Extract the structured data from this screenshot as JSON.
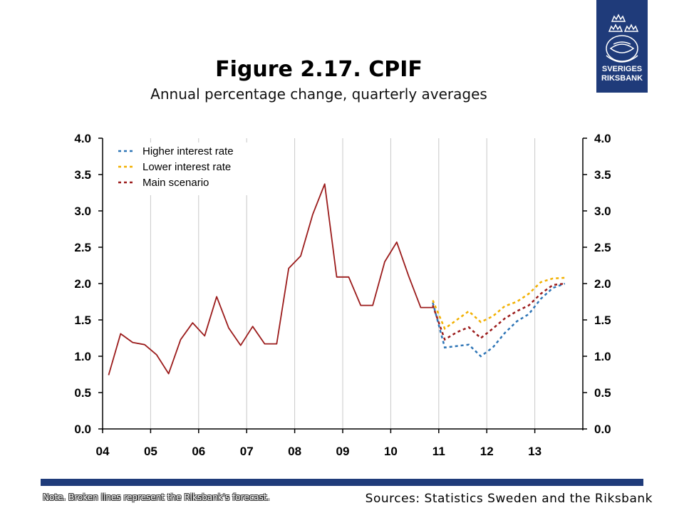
{
  "header": {
    "title": "Figure 2.17. CPIF",
    "subtitle": "Annual percentage change, quarterly averages"
  },
  "logo": {
    "line1": "SVERIGES",
    "line2": "RIKSBANK",
    "color": "#1f3b7a"
  },
  "footer": {
    "note": "Note. Broken lines represent the Riksbank's forecast.",
    "sources": "Sources: Statistics Sweden and the Riksbank",
    "bar_color": "#1f3b7a"
  },
  "chart_data": {
    "type": "line",
    "x_tick_labels": [
      "04",
      "05",
      "06",
      "07",
      "08",
      "09",
      "10",
      "11",
      "12",
      "13"
    ],
    "ylim": [
      0,
      4
    ],
    "y_ticks": [
      "0.0",
      "0.5",
      "1.0",
      "1.5",
      "2.0",
      "2.5",
      "3.0",
      "3.5",
      "4.0"
    ],
    "right_axis_ticks": [
      "0.0",
      "0.5",
      "1.0",
      "1.5",
      "2.0",
      "2.5",
      "3.0",
      "3.5",
      "4.0"
    ],
    "grid": "vertical",
    "legend_position": "top-left",
    "x_unit": "quarter",
    "x_start": "2004Q1",
    "history": {
      "color": "#9b1b1b",
      "style": "solid",
      "values": [
        0.74,
        1.31,
        1.19,
        1.16,
        1.02,
        0.76,
        1.23,
        1.46,
        1.28,
        1.82,
        1.39,
        1.15,
        1.41,
        1.17,
        1.17,
        2.21,
        2.38,
        2.95,
        3.37,
        2.09,
        2.09,
        1.7,
        1.7,
        2.3,
        2.57,
        2.1,
        1.67,
        1.67
      ]
    },
    "series": [
      {
        "name": "Higher interest rate",
        "color": "#2e75b6",
        "style": "dashed",
        "start_quarter": "2010Q4",
        "values": [
          1.74,
          1.12,
          1.14,
          1.16,
          1.0,
          1.12,
          1.32,
          1.48,
          1.58,
          1.79,
          1.94,
          2.0
        ]
      },
      {
        "name": "Lower interest rate",
        "color": "#f2b000",
        "style": "dashed",
        "start_quarter": "2010Q4",
        "values": [
          1.77,
          1.38,
          1.5,
          1.62,
          1.47,
          1.55,
          1.69,
          1.75,
          1.86,
          2.02,
          2.07,
          2.08
        ]
      },
      {
        "name": "Main scenario",
        "color": "#9b1b1b",
        "style": "dashed",
        "start_quarter": "2010Q4",
        "values": [
          1.7,
          1.23,
          1.33,
          1.4,
          1.25,
          1.38,
          1.52,
          1.62,
          1.7,
          1.86,
          1.98,
          2.0
        ]
      }
    ]
  }
}
